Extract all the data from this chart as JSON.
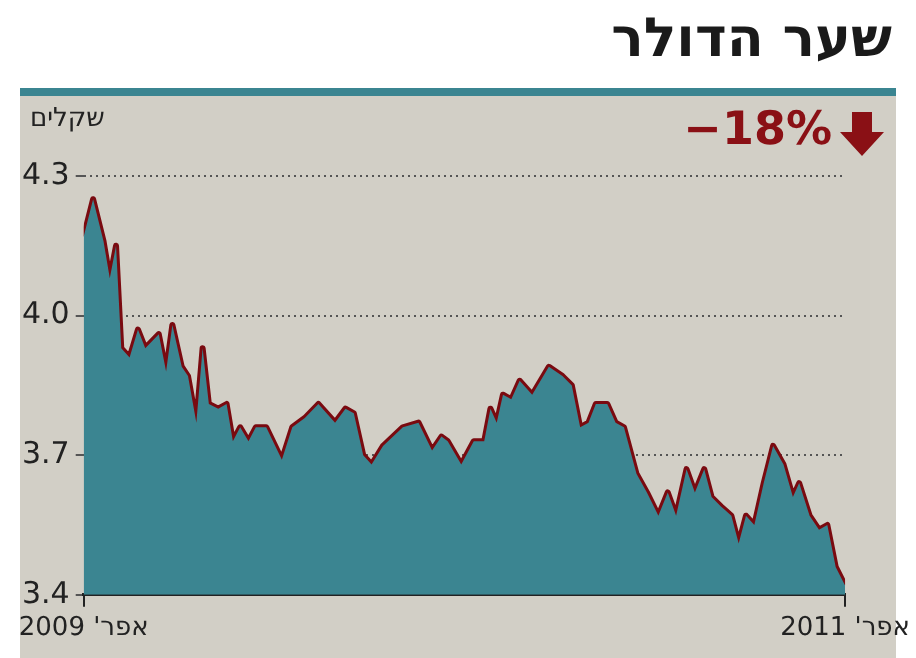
{
  "chart_data": {
    "type": "area",
    "title": "שער הדולר",
    "ylabel": "שקלים",
    "annotations": [
      "−18%"
    ],
    "x": [
      "2009-04-01",
      "2009-04-10",
      "2009-04-20",
      "2009-04-26",
      "2009-05-02",
      "2009-05-07",
      "2009-05-15",
      "2009-05-23",
      "2009-05-30",
      "2009-06-12",
      "2009-06-19",
      "2009-06-25",
      "2009-07-04",
      "2009-07-10",
      "2009-07-18",
      "2009-07-24",
      "2009-07-30",
      "2009-08-08",
      "2009-08-16",
      "2009-08-22",
      "2009-08-29",
      "2009-09-06",
      "2009-09-13",
      "2009-09-23",
      "2009-10-08",
      "2009-10-18",
      "2009-10-30",
      "2009-11-12",
      "2009-11-28",
      "2009-12-08",
      "2009-12-16",
      "2009-12-25",
      "2010-01-02",
      "2010-01-13",
      "2010-02-01",
      "2010-02-16",
      "2010-03-01",
      "2010-03-10",
      "2010-03-16",
      "2010-03-29",
      "2010-04-10",
      "2010-04-20",
      "2010-04-26",
      "2010-05-02",
      "2010-05-08",
      "2010-05-16",
      "2010-05-24",
      "2010-06-05",
      "2010-06-21",
      "2010-07-04",
      "2010-07-13",
      "2010-07-21",
      "2010-07-29",
      "2010-08-05",
      "2010-08-16",
      "2010-08-24",
      "2010-09-01",
      "2010-09-13",
      "2010-09-23",
      "2010-10-04",
      "2010-10-13",
      "2010-10-21",
      "2010-10-31",
      "2010-11-08",
      "2010-11-17",
      "2010-11-24",
      "2010-12-03",
      "2010-12-13",
      "2010-12-20",
      "2010-12-27",
      "2011-01-04",
      "2011-01-13",
      "2011-01-22",
      "2011-02-01",
      "2011-02-10",
      "2011-02-16",
      "2011-02-26",
      "2011-03-07",
      "2011-03-15",
      "2011-03-23",
      "2011-04-01"
    ],
    "series": [
      {
        "color": "#3b8591",
        "values": [
          4.17,
          4.25,
          4.16,
          4.08,
          4.15,
          3.93,
          3.91,
          3.97,
          3.93,
          3.96,
          3.88,
          3.98,
          3.89,
          3.87,
          3.77,
          3.93,
          3.81,
          3.8,
          3.81,
          3.73,
          3.76,
          3.73,
          3.76,
          3.76,
          3.69,
          3.76,
          3.78,
          3.81,
          3.77,
          3.8,
          3.79,
          3.7,
          3.68,
          3.72,
          3.76,
          3.77,
          3.71,
          3.74,
          3.73,
          3.68,
          3.73,
          3.73,
          3.8,
          3.77,
          3.83,
          3.82,
          3.86,
          3.83,
          3.89,
          3.87,
          3.85,
          3.76,
          3.77,
          3.81,
          3.81,
          3.77,
          3.76,
          3.66,
          3.62,
          3.57,
          3.62,
          3.57,
          3.67,
          3.62,
          3.67,
          3.61,
          3.59,
          3.57,
          3.51,
          3.57,
          3.55,
          3.64,
          3.72,
          3.68,
          3.61,
          3.64,
          3.57,
          3.54,
          3.55,
          3.46,
          3.42
        ]
      },
      {
        "type": "line",
        "color": "#7a0a10",
        "values": [
          4.17,
          4.25,
          4.16,
          4.08,
          4.15,
          3.93,
          3.91,
          3.97,
          3.93,
          3.96,
          3.88,
          3.98,
          3.89,
          3.87,
          3.77,
          3.93,
          3.81,
          3.8,
          3.81,
          3.73,
          3.76,
          3.73,
          3.76,
          3.76,
          3.69,
          3.76,
          3.78,
          3.81,
          3.77,
          3.8,
          3.79,
          3.7,
          3.68,
          3.72,
          3.76,
          3.77,
          3.71,
          3.74,
          3.73,
          3.68,
          3.73,
          3.73,
          3.8,
          3.77,
          3.83,
          3.82,
          3.86,
          3.83,
          3.89,
          3.87,
          3.85,
          3.76,
          3.77,
          3.81,
          3.81,
          3.77,
          3.76,
          3.66,
          3.62,
          3.57,
          3.62,
          3.57,
          3.67,
          3.62,
          3.67,
          3.61,
          3.59,
          3.57,
          3.51,
          3.57,
          3.55,
          3.64,
          3.72,
          3.68,
          3.61,
          3.64,
          3.57,
          3.54,
          3.55,
          3.46,
          3.42
        ]
      }
    ],
    "xlim": [
      "2009-04-01",
      "2011-04-01"
    ],
    "xticks": [
      {
        "value": "2009-04-01",
        "label": "אפר' 2009"
      },
      {
        "value": "2011-04-01",
        "label": "אפר' 2011"
      }
    ],
    "ylim": [
      3.4,
      4.3
    ],
    "yticks": [
      3.4,
      3.7,
      {
        "value": 4,
        "label": "4.0"
      },
      4.3
    ],
    "grid": "y",
    "legend": false
  }
}
